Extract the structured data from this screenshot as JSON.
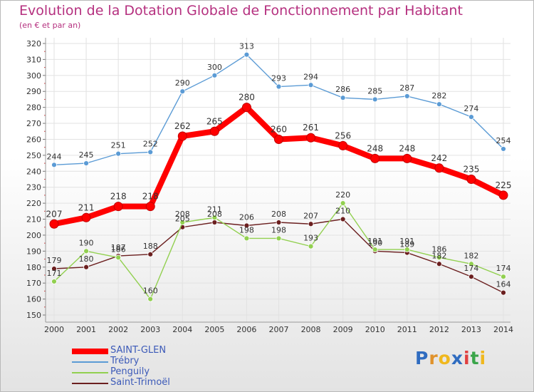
{
  "header": {
    "title": "Evolution de la Dotation Globale de Fonctionnement par Habitant",
    "subtitle": "(en € et par an)"
  },
  "branding": {
    "logo_text": "Proxiti",
    "letter_colors": [
      "#2f6cc0",
      "#e0922b",
      "#f0b81e",
      "#2f6cc0",
      "#e04040",
      "#3aa54a",
      "#f0b81e"
    ]
  },
  "chart_data": {
    "type": "line",
    "title": "Evolution de la Dotation Globale de Fonctionnement par Habitant",
    "subtitle": "(en € et par an)",
    "xlabel": "",
    "ylabel": "",
    "ylim": [
      150,
      320
    ],
    "y_tick_step": 10,
    "grid": true,
    "legend_position": "bottom-left",
    "x": [
      "2000",
      "2001",
      "2002",
      "2003",
      "2004",
      "2005",
      "2006",
      "2007",
      "2008",
      "2009",
      "2010",
      "2011",
      "2012",
      "2013",
      "2014"
    ],
    "series": [
      {
        "name": "SAINT-GLEN",
        "color": "#ff0000",
        "emphasis": true,
        "values": [
          207,
          211,
          218,
          218,
          262,
          265,
          280,
          260,
          261,
          256,
          248,
          248,
          242,
          235,
          225
        ]
      },
      {
        "name": "Trébry",
        "color": "#5b9bd5",
        "values": [
          244,
          245,
          251,
          252,
          290,
          300,
          313,
          293,
          294,
          286,
          285,
          287,
          282,
          274,
          254
        ]
      },
      {
        "name": "Penguily",
        "color": "#92d050",
        "values": [
          171,
          190,
          186,
          160,
          208,
          211,
          198,
          198,
          193,
          220,
          191,
          191,
          186,
          182,
          174
        ]
      },
      {
        "name": "Saint-Trimoël",
        "color": "#6b1f1f",
        "values": [
          179,
          180,
          187,
          188,
          205,
          208,
          206,
          208,
          207,
          210,
          190,
          189,
          182,
          174,
          164
        ]
      }
    ]
  }
}
